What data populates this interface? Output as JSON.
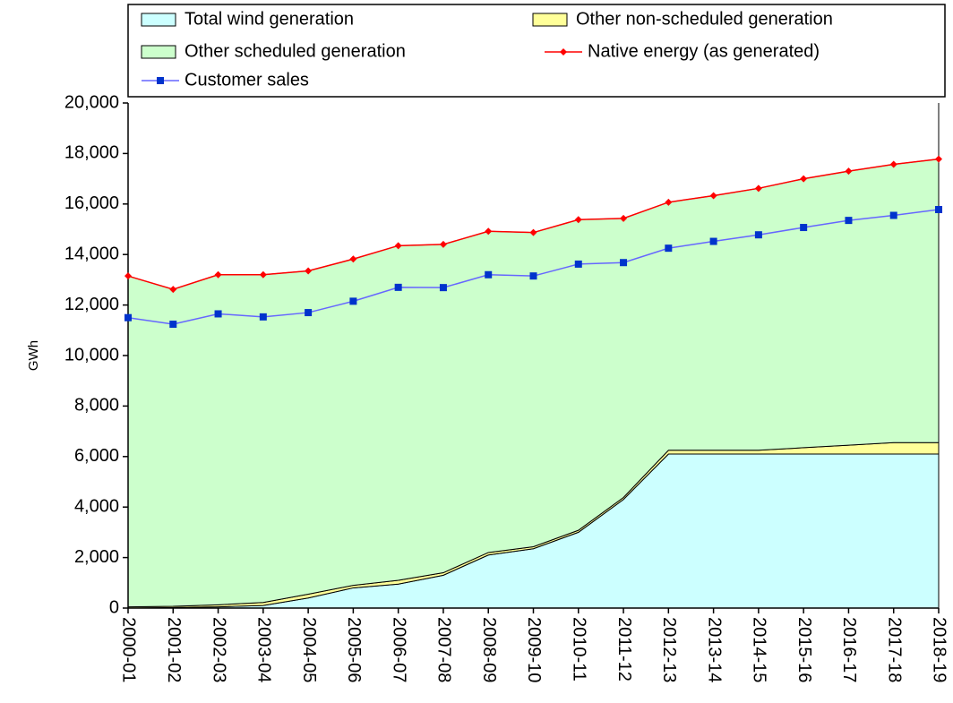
{
  "chart_data": {
    "type": "area",
    "stacked": true,
    "y_label": "GWh",
    "categories": [
      "2000-01",
      "2001-02",
      "2002-03",
      "2003-04",
      "2004-05",
      "2005-06",
      "2006-07",
      "2007-08",
      "2008-09",
      "2009-10",
      "2010-11",
      "2011-12",
      "2012-13",
      "2013-14",
      "2014-15",
      "2015-16",
      "2016-17",
      "2017-18",
      "2018-19"
    ],
    "series": [
      {
        "name": "Total wind generation",
        "kind": "area",
        "color": "#ccffff",
        "values": [
          0,
          20,
          50,
          100,
          400,
          800,
          950,
          1300,
          2100,
          2350,
          3000,
          4300,
          6100,
          6100,
          6100,
          6100,
          6100,
          6100,
          6100
        ]
      },
      {
        "name": "Other non-scheduled generation",
        "kind": "area",
        "color": "#ffff99",
        "values": [
          50,
          50,
          80,
          120,
          150,
          100,
          150,
          100,
          100,
          80,
          80,
          80,
          150,
          150,
          150,
          250,
          350,
          450,
          450
        ]
      },
      {
        "name": "Other scheduled generation",
        "kind": "area",
        "color": "#ccffcc",
        "values": [
          13100,
          12550,
          13070,
          12980,
          12800,
          12920,
          13250,
          13000,
          12720,
          12440,
          12300,
          11050,
          9820,
          10080,
          10370,
          10650,
          10850,
          11020,
          11230
        ]
      },
      {
        "name": "Native energy (as generated)",
        "kind": "line",
        "color": "#ff0000",
        "values": [
          13150,
          12620,
          13200,
          13200,
          13350,
          13820,
          14350,
          14400,
          14920,
          14870,
          15380,
          15430,
          16070,
          16330,
          16620,
          17000,
          17300,
          17570,
          17780
        ]
      },
      {
        "name": "Customer sales",
        "kind": "line",
        "color": "#6666ff",
        "marker_color": "#0033cc",
        "values": [
          11500,
          11240,
          11650,
          11530,
          11700,
          12150,
          12700,
          12690,
          13200,
          13150,
          13620,
          13680,
          14250,
          14520,
          14780,
          15070,
          15350,
          15550,
          15780
        ]
      }
    ],
    "ylim": [
      0,
      20000
    ],
    "yticks": [
      0,
      {
        "value": 2000,
        "label": "2,000"
      },
      {
        "value": 4000,
        "label": "4,000"
      },
      {
        "value": 6000,
        "label": "6,000"
      },
      {
        "value": 8000,
        "label": "8,000"
      },
      {
        "value": 10000,
        "label": "10,000"
      },
      {
        "value": 12000,
        "label": "12,000"
      },
      {
        "value": 14000,
        "label": "14,000"
      },
      {
        "value": 16000,
        "label": "16,000"
      },
      {
        "value": 18000,
        "label": "18,000"
      },
      {
        "value": 20000,
        "label": "20,000"
      }
    ],
    "legend": "top"
  }
}
